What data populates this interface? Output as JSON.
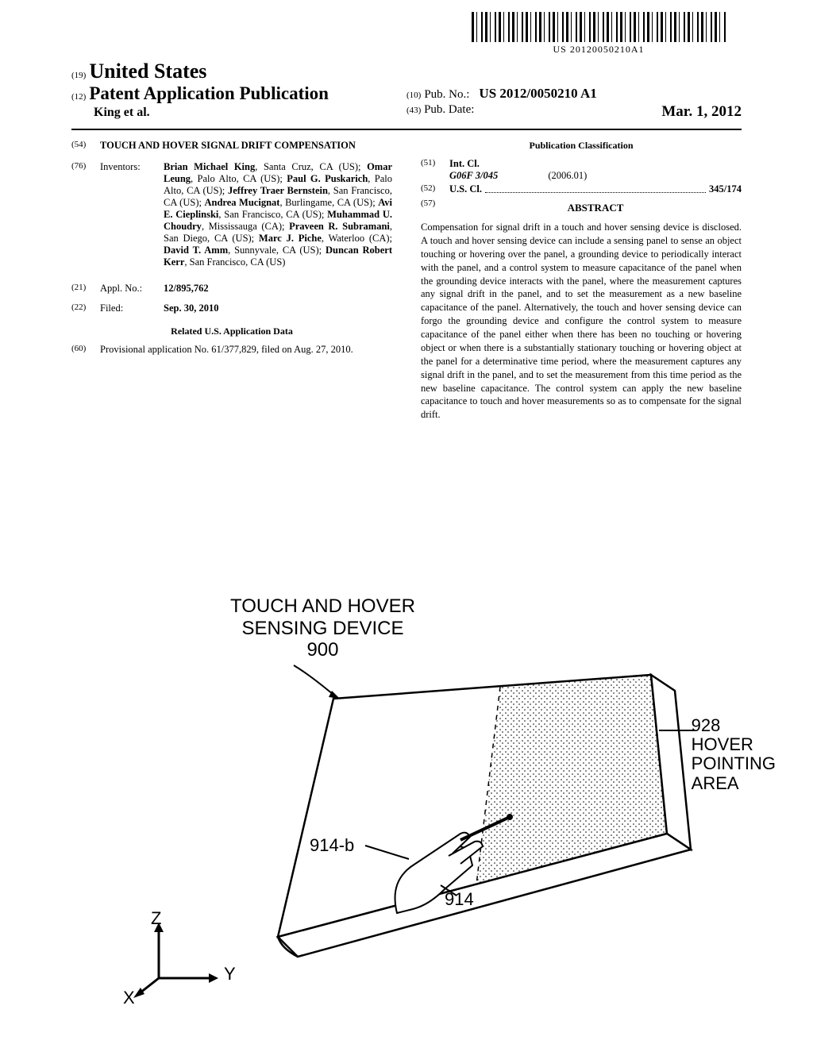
{
  "barcode_number": "US 20120050210A1",
  "header": {
    "country_num": "(19)",
    "country": "United States",
    "pub_type_num": "(12)",
    "pub_type": "Patent Application Publication",
    "author_line": "King et al.",
    "pubno_num": "(10)",
    "pubno_label": "Pub. No.:",
    "pubno_val": "US 2012/0050210 A1",
    "pubdate_num": "(43)",
    "pubdate_label": "Pub. Date:",
    "pubdate_val": "Mar. 1, 2012"
  },
  "left_col": {
    "title_num": "(54)",
    "title": "TOUCH AND HOVER SIGNAL DRIFT COMPENSATION",
    "inventors_num": "(76)",
    "inventors_label": "Inventors:",
    "inventors": [
      {
        "name": "Brian Michael King",
        "loc": ", Santa Cruz, CA (US); "
      },
      {
        "name": "Omar Leung",
        "loc": ", Palo Alto, CA (US); "
      },
      {
        "name": "Paul G. Puskarich",
        "loc": ", Palo Alto, CA (US); "
      },
      {
        "name": "Jeffrey Traer Bernstein",
        "loc": ", San Francisco, CA (US); "
      },
      {
        "name": "Andrea Mucignat",
        "loc": ", Burlingame, CA (US); "
      },
      {
        "name": "Avi E. Cieplinski",
        "loc": ", San Francisco, CA (US); "
      },
      {
        "name": "Muhammad U. Choudry",
        "loc": ", Mississauga (CA); "
      },
      {
        "name": "Praveen R. Subramani",
        "loc": ", San Diego, CA (US); "
      },
      {
        "name": "Marc J. Piche",
        "loc": ", Waterloo (CA); "
      },
      {
        "name": "David T. Amm",
        "loc": ", Sunnyvale, CA (US); "
      },
      {
        "name": "Duncan Robert Kerr",
        "loc": ", San Francisco, CA (US)"
      }
    ],
    "applno_num": "(21)",
    "applno_label": "Appl. No.:",
    "applno_val": "12/895,762",
    "filed_num": "(22)",
    "filed_label": "Filed:",
    "filed_val": "Sep. 30, 2010",
    "related_header": "Related U.S. Application Data",
    "provisional_num": "(60)",
    "provisional_text": "Provisional application No. 61/377,829, filed on Aug. 27, 2010."
  },
  "right_col": {
    "pubclass_header": "Publication Classification",
    "intcl_num": "(51)",
    "intcl_label": "Int. Cl.",
    "intcl_code": "G06F 3/045",
    "intcl_date": "(2006.01)",
    "uscl_num": "(52)",
    "uscl_label": "U.S. Cl.",
    "uscl_val": "345/174",
    "abstract_num": "(57)",
    "abstract_header": "ABSTRACT",
    "abstract_text": "Compensation for signal drift in a touch and hover sensing device is disclosed. A touch and hover sensing device can include a sensing panel to sense an object touching or hovering over the panel, a grounding device to periodically interact with the panel, and a control system to measure capacitance of the panel when the grounding device interacts with the panel, where the measurement captures any signal drift in the panel, and to set the measurement as a new baseline capacitance of the panel. Alternatively, the touch and hover sensing device can forgo the grounding device and configure the control system to measure capacitance of the panel either when there has been no touching or hovering object or when there is a substantially stationary touching or hovering object at the panel for a determinative time period, where the measurement captures any signal drift in the panel, and to set the measurement from this time period as the new baseline capacitance. The control system can apply the new baseline capacitance to touch and hover measurements so as to compensate for the signal drift."
  },
  "figure": {
    "title_line1": "TOUCH AND HOVER",
    "title_line2": "SENSING DEVICE",
    "title_line3": "900",
    "label_928_num": "928",
    "label_928_line1": "HOVER",
    "label_928_line2": "POINTING",
    "label_928_line3": "AREA",
    "label_914b": "914-b",
    "label_914": "914",
    "axis_z": "Z",
    "axis_y": "Y",
    "axis_x": "X"
  }
}
